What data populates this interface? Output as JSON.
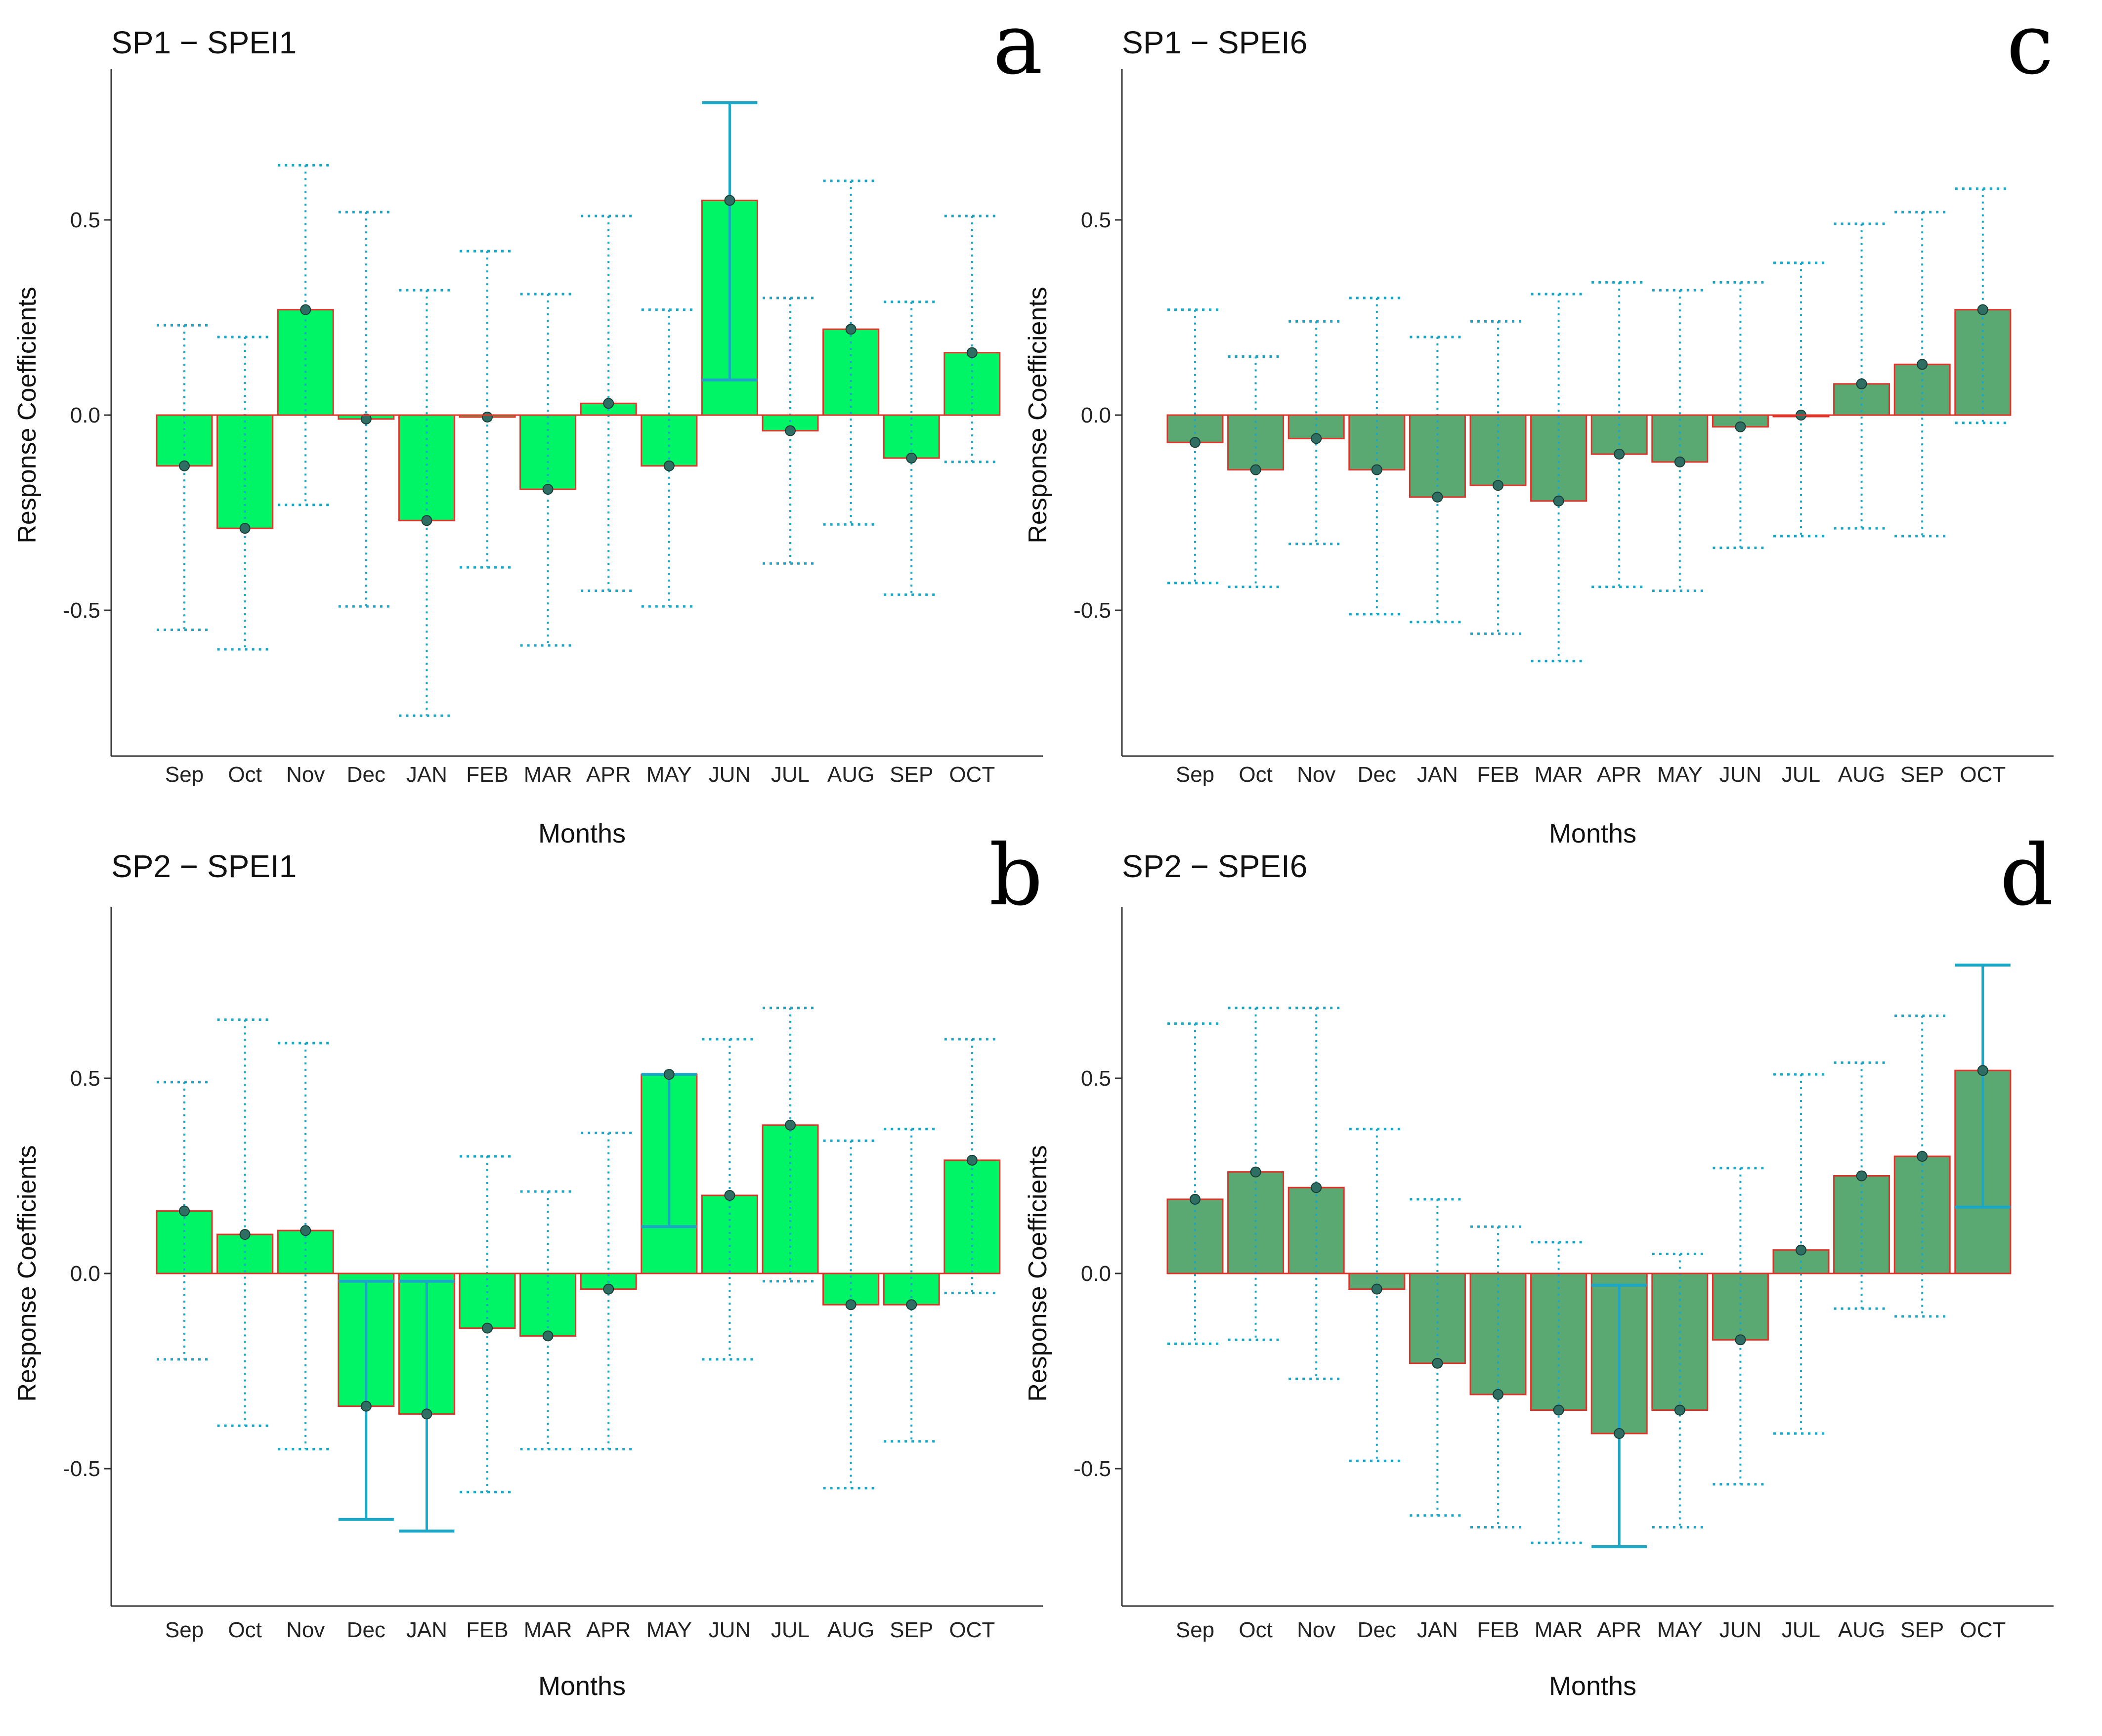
{
  "figure": {
    "colors": {
      "bar_light": "#00f566",
      "bar_dark": "#5aa872",
      "bar_edge": "#e0342a",
      "ci": "#1ba6c6",
      "point": "#2f6f63",
      "axis": "#333333"
    }
  },
  "chart_data": [
    {
      "panel_letter": "a",
      "title": "SP1 − SPEI1",
      "type": "bar",
      "style": "light",
      "xlabel": "Months",
      "ylabel": "Response Coefficients",
      "ylim": [
        -0.88,
        0.88
      ],
      "yticks": [
        "-0.5",
        "0.0",
        "0.5"
      ],
      "categories": [
        "Sep",
        "Oct",
        "Nov",
        "Dec",
        "JAN",
        "FEB",
        "MAR",
        "APR",
        "MAY",
        "JUN",
        "JUL",
        "AUG",
        "SEP",
        "OCT"
      ],
      "values": [
        -0.13,
        -0.29,
        0.27,
        -0.01,
        -0.27,
        -0.005,
        -0.19,
        0.03,
        -0.13,
        0.55,
        -0.04,
        0.22,
        -0.11,
        0.16
      ],
      "ci_upper": [
        0.23,
        0.2,
        0.64,
        0.52,
        0.32,
        0.42,
        0.31,
        0.51,
        0.27,
        0.8,
        0.3,
        0.6,
        0.29,
        0.51
      ],
      "ci_lower": [
        -0.55,
        -0.6,
        -0.23,
        -0.49,
        -0.77,
        -0.39,
        -0.59,
        -0.45,
        -0.49,
        0.09,
        -0.38,
        -0.28,
        -0.46,
        -0.12
      ],
      "significant": [
        false,
        false,
        false,
        false,
        false,
        false,
        false,
        false,
        false,
        true,
        false,
        false,
        false,
        false
      ]
    },
    {
      "panel_letter": "b",
      "title": "SP2 − SPEI1",
      "type": "bar",
      "style": "light",
      "xlabel": "Months",
      "ylabel": "Response Coefficients",
      "ylim": [
        -0.88,
        0.88
      ],
      "yticks": [
        "-0.5",
        "0.0",
        "0.5"
      ],
      "categories": [
        "Sep",
        "Oct",
        "Nov",
        "Dec",
        "JAN",
        "FEB",
        "MAR",
        "APR",
        "MAY",
        "JUN",
        "JUL",
        "AUG",
        "SEP",
        "OCT"
      ],
      "values": [
        0.16,
        0.1,
        0.11,
        -0.34,
        -0.36,
        -0.14,
        -0.16,
        -0.04,
        0.51,
        0.2,
        0.38,
        -0.08,
        -0.08,
        0.29
      ],
      "ci_upper": [
        0.49,
        0.65,
        0.59,
        -0.02,
        -0.02,
        0.3,
        0.21,
        0.36,
        0.51,
        0.6,
        0.68,
        0.34,
        0.37,
        0.6
      ],
      "ci_lower": [
        -0.22,
        -0.39,
        -0.45,
        -0.63,
        -0.66,
        -0.56,
        -0.45,
        -0.45,
        0.12,
        -0.22,
        -0.02,
        -0.55,
        -0.43,
        -0.05
      ],
      "significant": [
        false,
        false,
        false,
        true,
        true,
        false,
        false,
        false,
        true,
        false,
        false,
        false,
        false,
        false
      ]
    },
    {
      "panel_letter": "c",
      "title": "SP1 − SPEI6",
      "type": "bar",
      "style": "dark",
      "xlabel": "Months",
      "ylabel": "Response Coefficients",
      "ylim": [
        -0.88,
        0.88
      ],
      "yticks": [
        "-0.5",
        "0.0",
        "0.5"
      ],
      "categories": [
        "Sep",
        "Oct",
        "Nov",
        "Dec",
        "JAN",
        "FEB",
        "MAR",
        "APR",
        "MAY",
        "JUN",
        "JUL",
        "AUG",
        "SEP",
        "OCT"
      ],
      "values": [
        -0.07,
        -0.14,
        -0.06,
        -0.14,
        -0.21,
        -0.18,
        -0.22,
        -0.1,
        -0.12,
        -0.03,
        0.0,
        0.08,
        0.13,
        0.27
      ],
      "ci_upper": [
        0.27,
        0.15,
        0.24,
        0.3,
        0.2,
        0.24,
        0.31,
        0.34,
        0.32,
        0.34,
        0.39,
        0.49,
        0.52,
        0.58
      ],
      "ci_lower": [
        -0.43,
        -0.44,
        -0.33,
        -0.51,
        -0.53,
        -0.56,
        -0.63,
        -0.44,
        -0.45,
        -0.34,
        -0.31,
        -0.29,
        -0.31,
        -0.02
      ],
      "significant": [
        false,
        false,
        false,
        false,
        false,
        false,
        false,
        false,
        false,
        false,
        false,
        false,
        false,
        false
      ]
    },
    {
      "panel_letter": "d",
      "title": "SP2 − SPEI6",
      "type": "bar",
      "style": "dark",
      "xlabel": "Months",
      "ylabel": "Response Coefficients",
      "ylim": [
        -0.88,
        0.88
      ],
      "yticks": [
        "-0.5",
        "0.0",
        "0.5"
      ],
      "categories": [
        "Sep",
        "Oct",
        "Nov",
        "Dec",
        "JAN",
        "FEB",
        "MAR",
        "APR",
        "MAY",
        "JUN",
        "JUL",
        "AUG",
        "SEP",
        "OCT"
      ],
      "values": [
        0.19,
        0.26,
        0.22,
        -0.04,
        -0.23,
        -0.31,
        -0.35,
        -0.41,
        -0.35,
        -0.17,
        0.06,
        0.25,
        0.3,
        0.52
      ],
      "ci_upper": [
        0.64,
        0.68,
        0.68,
        0.37,
        0.19,
        0.12,
        0.08,
        -0.03,
        0.05,
        0.27,
        0.51,
        0.54,
        0.66,
        0.79
      ],
      "ci_lower": [
        -0.18,
        -0.17,
        -0.27,
        -0.48,
        -0.62,
        -0.65,
        -0.69,
        -0.7,
        -0.65,
        -0.54,
        -0.41,
        -0.09,
        -0.11,
        0.17
      ],
      "significant": [
        false,
        false,
        false,
        false,
        false,
        false,
        false,
        true,
        false,
        false,
        false,
        false,
        false,
        true
      ]
    }
  ]
}
